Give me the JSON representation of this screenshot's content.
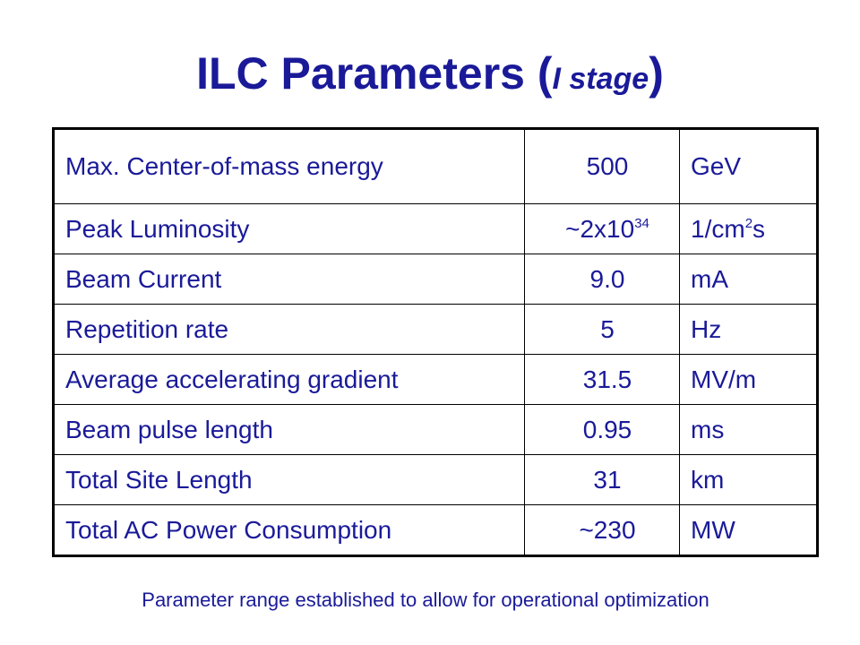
{
  "slide": {
    "title_main": "ILC Parameters (",
    "title_sub": "I stage",
    "title_close": ")",
    "footnote": "Parameter range established to allow for operational optimization"
  },
  "rows": [
    {
      "parameter": "Max. Center-of-mass energy",
      "value": "500",
      "unit": "GeV"
    },
    {
      "parameter": "Peak Luminosity",
      "value_base": "~2x10",
      "value_exp": "34",
      "unit_base": "1/cm",
      "unit_exp": "2",
      "unit_tail": "s"
    },
    {
      "parameter": "Beam Current",
      "value": "9.0",
      "unit": "mA"
    },
    {
      "parameter": "Repetition rate",
      "value": "5",
      "unit": "Hz"
    },
    {
      "parameter": "Average accelerating gradient",
      "value": "31.5",
      "unit": "MV/m"
    },
    {
      "parameter": "Beam pulse length",
      "value": "0.95",
      "unit": "ms"
    },
    {
      "parameter": "Total Site Length",
      "value": "31",
      "unit": "km"
    },
    {
      "parameter": "Total AC Power Consumption",
      "value": "~230",
      "unit": "MW"
    }
  ]
}
